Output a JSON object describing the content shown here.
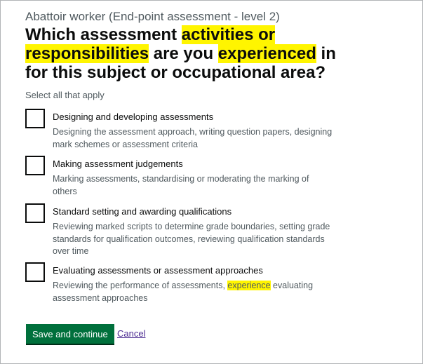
{
  "caption": "Abattoir worker (End-point assessment - level 2)",
  "question": {
    "p1": "Which assessment ",
    "hl1": "activities or responsibilities",
    "p2": " are you ",
    "hl2": "experienced",
    "p3": " in for this subject or occupational area?"
  },
  "hint": "Select all that apply",
  "options": [
    {
      "label": "Designing and developing assessments",
      "hint": "Designing the assessment approach, writing question papers, designing mark schemes or assessment criteria",
      "checked": false
    },
    {
      "label": "Making assessment judgements",
      "hint": "Marking assessments, standardising or moderating the marking of others",
      "checked": false
    },
    {
      "label": "Standard setting and awarding qualifications",
      "hint": "Reviewing marked scripts to determine grade boundaries, setting grade standards for qualification outcomes, reviewing qualification standards over time",
      "checked": false
    },
    {
      "label": "Evaluating assessments or assessment approaches",
      "hint_p1": "Reviewing the performance of assessments, ",
      "hint_hl": "experience",
      "hint_p2": " evaluating assessment approaches",
      "checked": false
    }
  ],
  "buttons": {
    "save": "Save and continue",
    "cancel": "Cancel"
  },
  "colors": {
    "highlight": "#fff500",
    "button": "#00703c",
    "link": "#4c2c92"
  }
}
